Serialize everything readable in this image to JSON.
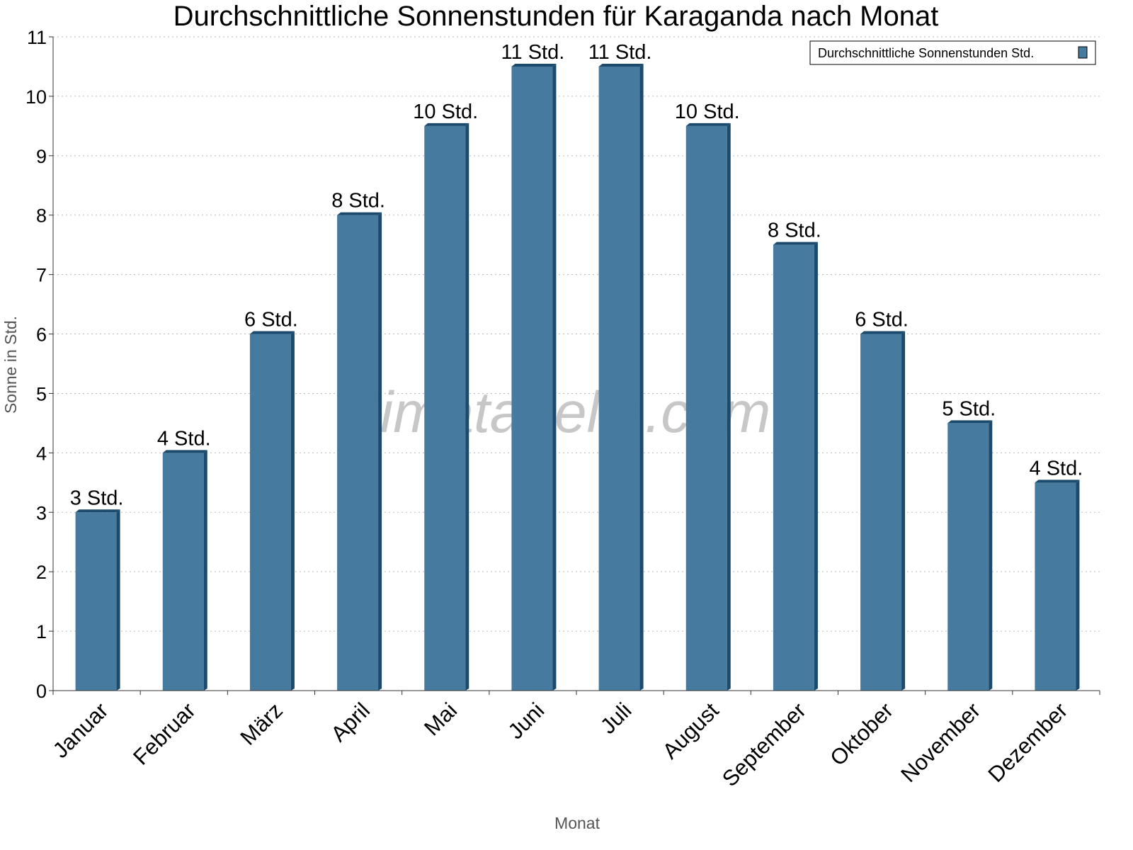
{
  "chart_data": {
    "type": "bar",
    "title": "Durchschnittliche Sonnenstunden für Karaganda nach Monat",
    "xlabel": "Monat",
    "ylabel": "Sonne in Std.",
    "ylim": [
      0,
      11
    ],
    "yticks": [
      "0",
      "1",
      "2",
      "3",
      "4",
      "5",
      "6",
      "7",
      "8",
      "9",
      "10",
      "11"
    ],
    "grid": true,
    "legend_position": "top-right",
    "categories": [
      "Januar",
      "Februar",
      "März",
      "April",
      "Mai",
      "Juni",
      "Juli",
      "August",
      "September",
      "Oktober",
      "November",
      "Dezember"
    ],
    "series": [
      {
        "name": "Durchschnittliche Sonnenstunden Std.",
        "values": [
          3,
          4,
          6,
          8,
          9.5,
          10.5,
          10.5,
          9.5,
          7.5,
          6,
          4.5,
          3.5
        ],
        "data_labels": [
          "3 Std.",
          "4 Std.",
          "6 Std.",
          "8 Std.",
          "10 Std.",
          "11 Std.",
          "11 Std.",
          "10 Std.",
          "8 Std.",
          "6 Std.",
          "5 Std.",
          "4 Std."
        ],
        "color": "#467a9e",
        "side_color": "#1b4a6d"
      }
    ],
    "watermark": "klimatabelle.com"
  }
}
